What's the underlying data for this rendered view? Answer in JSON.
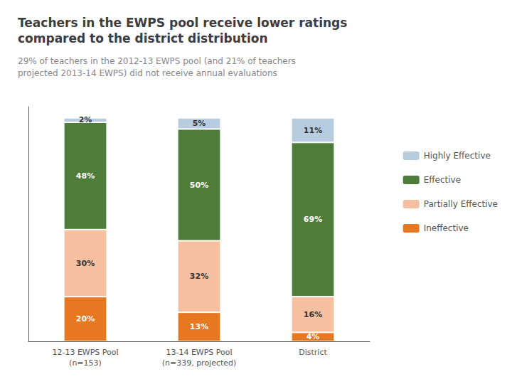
{
  "chart_data": {
    "type": "bar",
    "title": "Teachers in the EWPS pool receive lower ratings\ncompared to the district distribution",
    "subtitle": "29% of teachers in the 2012-13 EWPS pool (and 21% of teachers\nprojected 2013-14 EWPS) did not receive annual evaluations",
    "categories": [
      "12-13 EWPS Pool\n(n=153)",
      "13-14 EWPS Pool\n(n=339, projected)",
      "District"
    ],
    "series": [
      {
        "name": "Ineffective",
        "color": "#E87722",
        "values": [
          20,
          13,
          4
        ],
        "value_labels": [
          "20%",
          "13%",
          "4%"
        ]
      },
      {
        "name": "Partially Effective",
        "color": "#F5BFA0",
        "values": [
          30,
          32,
          16
        ],
        "value_labels": [
          "30%",
          "32%",
          "16%"
        ]
      },
      {
        "name": "Effective",
        "color": "#4E7D3A",
        "values": [
          48,
          50,
          69
        ],
        "value_labels": [
          "48%",
          "50%",
          "69%"
        ]
      },
      {
        "name": "Highly Effective",
        "color": "#B8CCE0",
        "values": [
          2,
          5,
          11
        ],
        "value_labels": [
          "2%",
          "5%",
          "11%"
        ]
      }
    ],
    "ylim": [
      0,
      105
    ],
    "stacked": true,
    "data_labels": true,
    "tick_labels": "x",
    "grid": false,
    "legend": "right"
  }
}
